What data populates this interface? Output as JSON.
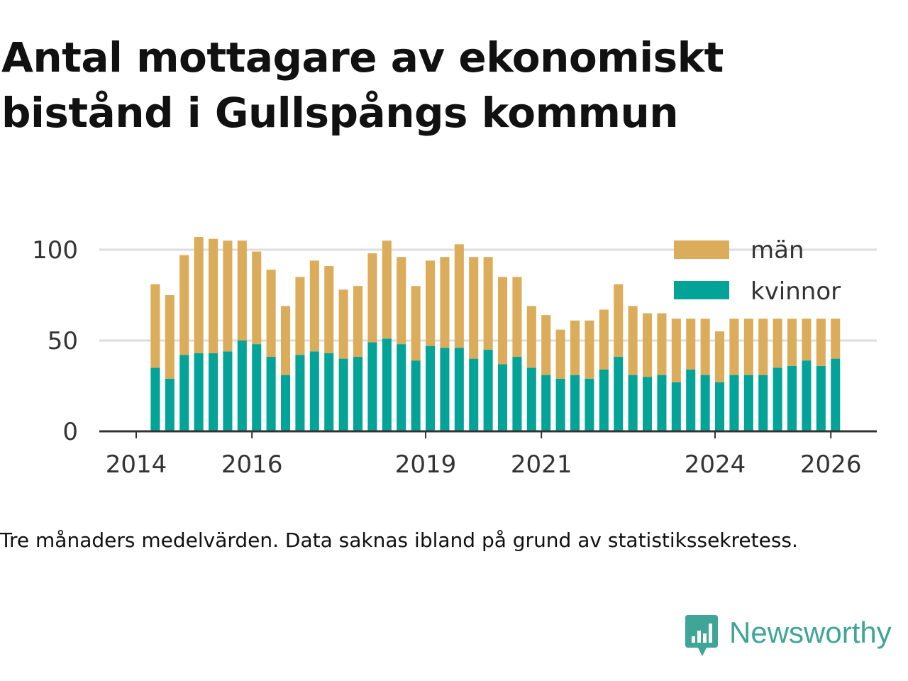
{
  "title": "Antal mottagare av ekonomiskt bistånd i Gullspångs kommun",
  "caption": "Tre månaders medelvärden. Data saknas ibland på grund av statistikssekretess.",
  "brand": {
    "name": "Newsworthy",
    "icon": "newsworthy-logo-icon",
    "color": "#3fa596"
  },
  "colors": {
    "man": "#dbac5a",
    "kvinnor": "#04a398",
    "axis": "#333333",
    "grid": "#dddddd"
  },
  "chart_data": {
    "type": "bar",
    "stacked": true,
    "title": "Antal mottagare av ekonomiskt bistånd i Gullspångs kommun",
    "xlabel": "",
    "ylabel": "",
    "ylim": [
      0,
      110
    ],
    "yticks": [
      0,
      50,
      100
    ],
    "xtick_labels": [
      "2014",
      "2016",
      "2019",
      "2021",
      "2024",
      "2026"
    ],
    "xtick_positions": [
      2014.0,
      2016.0,
      2019.0,
      2021.0,
      2024.0,
      2026.0
    ],
    "grid": true,
    "legend": {
      "position": "top-right",
      "entries": [
        "män",
        "kvinnor"
      ]
    },
    "bar_width_years": 0.16,
    "x": [
      2014.33,
      2014.58,
      2014.83,
      2015.08,
      2015.33,
      2015.58,
      2015.83,
      2016.08,
      2016.33,
      2016.58,
      2016.83,
      2017.08,
      2017.33,
      2017.58,
      2017.83,
      2018.08,
      2018.33,
      2018.58,
      2018.83,
      2019.08,
      2019.33,
      2019.58,
      2019.83,
      2020.08,
      2020.33,
      2020.58,
      2020.83,
      2021.08,
      2021.33,
      2021.58,
      2021.83,
      2022.08,
      2022.33,
      2022.58,
      2022.83,
      2023.08,
      2023.33,
      2023.58,
      2023.83,
      2024.08,
      2024.33,
      2024.58,
      2024.83,
      2025.08,
      2025.33,
      2025.58,
      2025.83,
      2026.08
    ],
    "series": [
      {
        "name": "kvinnor",
        "values": [
          35,
          29,
          42,
          43,
          43,
          44,
          50,
          48,
          41,
          31,
          42,
          44,
          43,
          40,
          41,
          49,
          51,
          48,
          39,
          47,
          46,
          46,
          40,
          45,
          37,
          41,
          35,
          31,
          29,
          31,
          29,
          34,
          41,
          31,
          30,
          31,
          27,
          34,
          31,
          27,
          31,
          31,
          31,
          35,
          36,
          39,
          36,
          40
        ]
      },
      {
        "name": "män",
        "values": [
          46,
          46,
          55,
          64,
          63,
          61,
          55,
          51,
          48,
          38,
          43,
          50,
          48,
          38,
          39,
          49,
          54,
          48,
          41,
          47,
          50,
          57,
          56,
          51,
          48,
          44,
          34,
          33,
          27,
          30,
          32,
          33,
          40,
          38,
          35,
          34,
          35,
          28,
          31,
          28,
          31,
          31,
          31,
          27,
          26,
          23,
          26,
          22
        ]
      }
    ]
  }
}
